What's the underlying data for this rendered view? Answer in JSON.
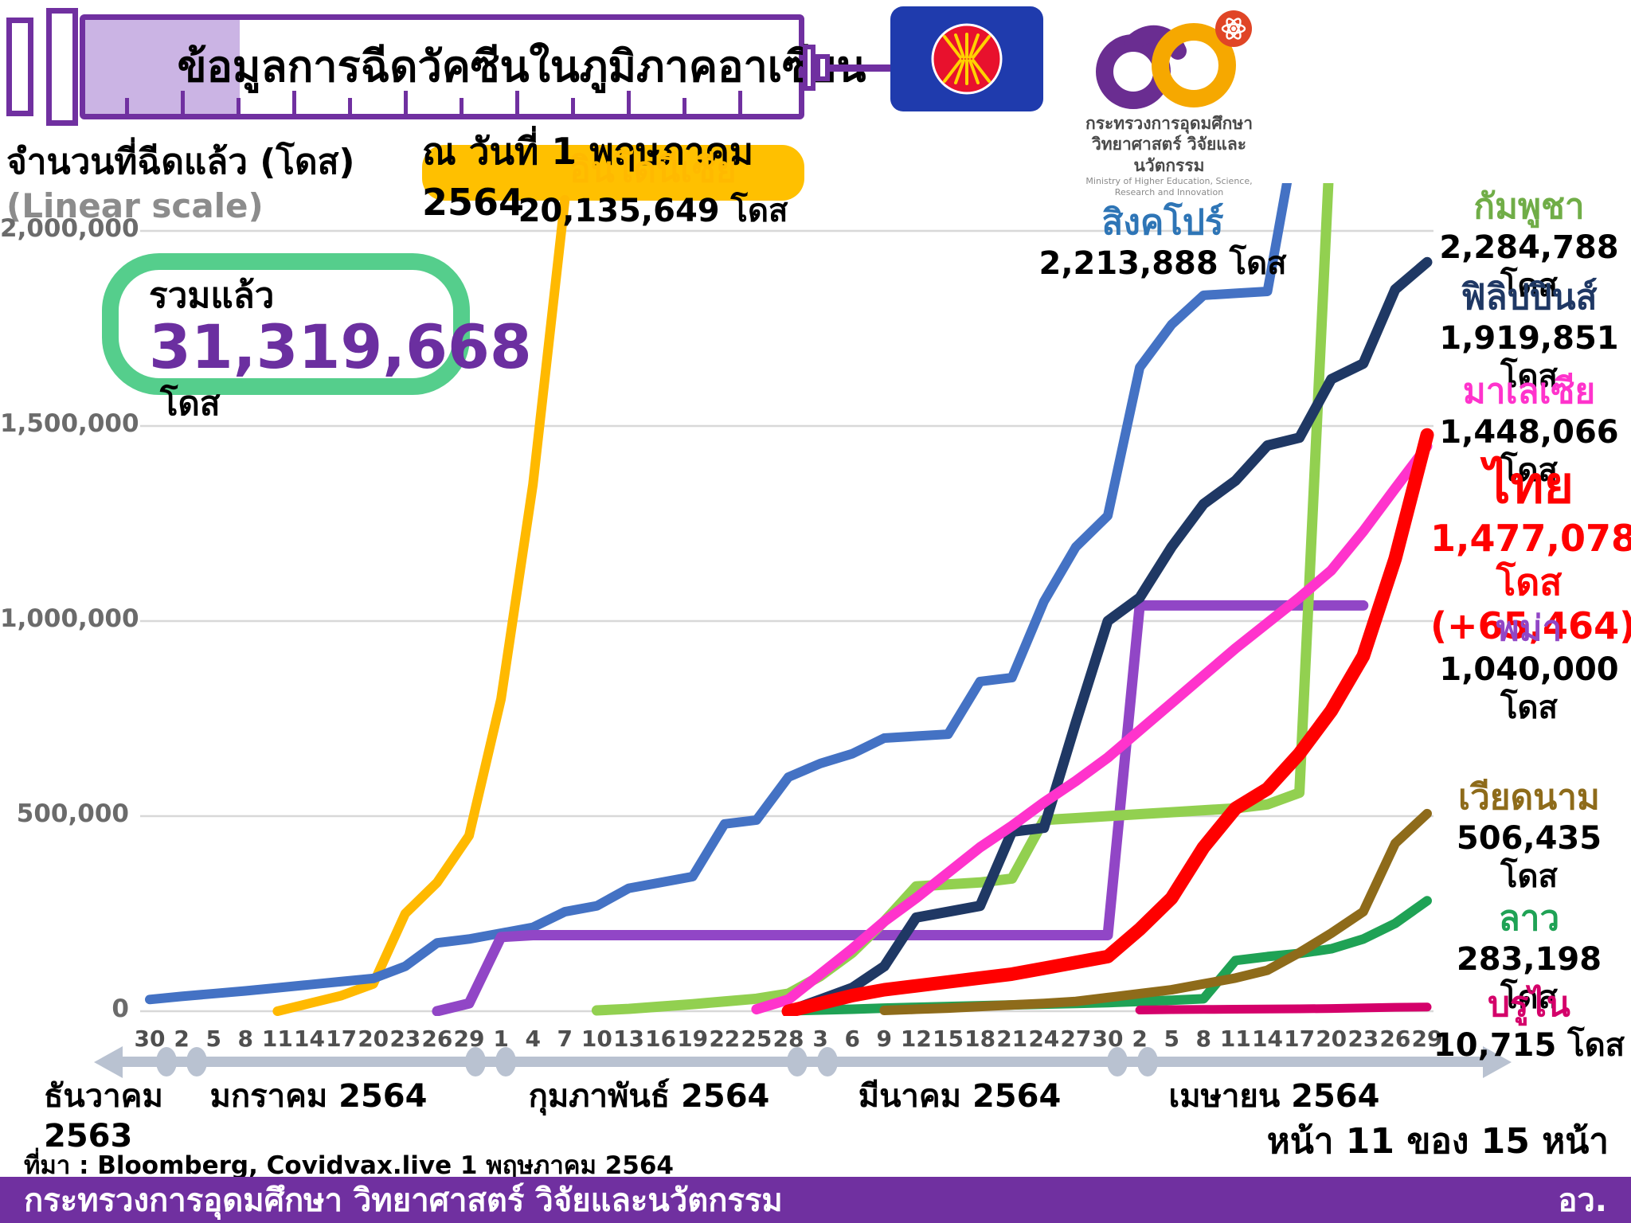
{
  "header": {
    "title": "ข้อมูลการฉีดวัคซีนในภูมิภาคอาเซียน",
    "date_badge": "ณ วันที่ 1 พฤษภาคม 2564",
    "asean_flag": "asean-emblem",
    "ministry_logo": "mhesi-60-logo",
    "ministry_name_line1": "กระทรวงการอุดมศึกษา",
    "ministry_name_line2": "วิทยาศาสตร์ วิจัยและนวัตกรรม",
    "ministry_name_en": "Ministry of Higher Education, Science, Research and Innovation"
  },
  "axis_title": "จำนวนที่ฉีดแล้ว (โดส)",
  "axis_subtitle": "(Linear scale)",
  "total_box": {
    "label": "รวมแล้ว",
    "value": "31,319,668",
    "unit": "โดส"
  },
  "chart_data": {
    "type": "line",
    "title": "ข้อมูลการฉีดวัคซีนในภูมิภาคอาเซียน ณ วันที่ 1 พฤษภาคม 2564",
    "xlabel": "",
    "ylabel": "จำนวนที่ฉีดแล้ว (โดส)",
    "scale_note": "(Linear scale)",
    "ylim": [
      0,
      2000000
    ],
    "grid": true,
    "legend_position": "right-annotations",
    "ytick_values": [
      0,
      500000,
      1000000,
      1500000,
      2000000
    ],
    "ytick_labels": [
      "0",
      "500,000",
      "1,000,000",
      "1,500,000",
      "2,000,000"
    ],
    "x_tick_labels": [
      "30",
      "2",
      "5",
      "8",
      "11",
      "14",
      "17",
      "20",
      "23",
      "26",
      "29",
      "1",
      "4",
      "7",
      "10",
      "13",
      "16",
      "19",
      "22",
      "25",
      "28",
      "3",
      "6",
      "9",
      "12",
      "15",
      "18",
      "21",
      "24",
      "27",
      "30",
      "2",
      "5",
      "8",
      "11",
      "14",
      "17",
      "20",
      "23",
      "26",
      "29"
    ],
    "months": [
      {
        "label": "ธันวาคม 2563"
      },
      {
        "label": "มกราคม 2564"
      },
      {
        "label": "กุมภาพันธ์ 2564"
      },
      {
        "label": "มีนาคม 2564"
      },
      {
        "label": "เมษายน 2564"
      }
    ],
    "series": [
      {
        "id": "indonesia",
        "label": "อินโดนีเซีย",
        "value_label": "20,135,649 โดส",
        "final_doses": 20135649,
        "color": "#FFB900",
        "width": 12,
        "values": [
          null,
          null,
          null,
          null,
          0,
          20000,
          40000,
          70000,
          250000,
          330000,
          450000,
          800000,
          1350000,
          2080000,
          null,
          null,
          null,
          null,
          null,
          null,
          null,
          null,
          null,
          null,
          null,
          null,
          null,
          null,
          null,
          null,
          null,
          null,
          null,
          null,
          null,
          null,
          null,
          null,
          null,
          null,
          null
        ]
      },
      {
        "id": "singapore",
        "label": "สิงคโปร์",
        "value_label": "2,213,888 โดส",
        "final_doses": 2213888,
        "color": "#4472C4",
        "width": 12,
        "values": [
          30000,
          38000,
          45000,
          52000,
          60000,
          68000,
          76000,
          84000,
          115000,
          175000,
          185000,
          200000,
          215000,
          255000,
          270000,
          315000,
          330000,
          345000,
          480000,
          490000,
          600000,
          635000,
          660000,
          700000,
          705000,
          710000,
          845000,
          855000,
          1050000,
          1190000,
          1270000,
          1650000,
          1760000,
          1835000,
          1840000,
          1845000,
          2300000,
          null,
          null,
          null,
          null
        ]
      },
      {
        "id": "myanmar",
        "label": "พม่า",
        "value_label": "1,040,000 โดส",
        "final_doses": 1040000,
        "color": "#9146C6",
        "width": 13,
        "values": [
          null,
          null,
          null,
          null,
          null,
          null,
          null,
          null,
          null,
          0,
          20000,
          190000,
          195000,
          195000,
          195000,
          195000,
          195000,
          195000,
          195000,
          195000,
          195000,
          195000,
          195000,
          195000,
          195000,
          195000,
          195000,
          195000,
          195000,
          195000,
          195000,
          1040000,
          1040000,
          1040000,
          1040000,
          1040000,
          1040000,
          1040000,
          1040000,
          null,
          null
        ]
      },
      {
        "id": "cambodia",
        "label": "กัมพูชา",
        "value_label": "2,284,788 โดส",
        "final_doses": 2284788,
        "color": "#92D050",
        "width": 13,
        "values": [
          null,
          null,
          null,
          null,
          null,
          null,
          null,
          null,
          null,
          null,
          null,
          null,
          null,
          null,
          2000,
          6000,
          12000,
          18000,
          25000,
          32000,
          45000,
          90000,
          150000,
          230000,
          320000,
          325000,
          330000,
          340000,
          490000,
          495000,
          500000,
          505000,
          510000,
          515000,
          520000,
          530000,
          560000,
          2285000,
          null,
          null,
          null
        ]
      },
      {
        "id": "laos",
        "label": "ลาว",
        "value_label": "283,198 โดส",
        "final_doses": 283198,
        "color": "#1FA255",
        "width": 12,
        "values": [
          null,
          null,
          null,
          null,
          null,
          null,
          null,
          null,
          null,
          null,
          null,
          null,
          null,
          null,
          null,
          null,
          null,
          null,
          null,
          null,
          1000,
          3000,
          5000,
          8000,
          10000,
          12000,
          14000,
          16000,
          18000,
          20000,
          22000,
          25000,
          28000,
          32000,
          130000,
          140000,
          148000,
          160000,
          185000,
          225000,
          283198
        ]
      },
      {
        "id": "vietnam",
        "label": "เวียดนาม",
        "value_label": "506,435 โดส",
        "final_doses": 506435,
        "color": "#8E6B1A",
        "width": 12,
        "values": [
          null,
          null,
          null,
          null,
          null,
          null,
          null,
          null,
          null,
          null,
          null,
          null,
          null,
          null,
          null,
          null,
          null,
          null,
          null,
          null,
          null,
          null,
          null,
          2000,
          5000,
          8000,
          12000,
          16000,
          20000,
          25000,
          35000,
          45000,
          55000,
          70000,
          85000,
          105000,
          150000,
          200000,
          255000,
          430000,
          506435
        ]
      },
      {
        "id": "philippines",
        "label": "ฟิลิปปินส์",
        "value_label": "1,919,851 โดส",
        "final_doses": 1919851,
        "color": "#1F3864",
        "width": 13,
        "values": [
          null,
          null,
          null,
          null,
          null,
          null,
          null,
          null,
          null,
          null,
          null,
          null,
          null,
          null,
          null,
          null,
          null,
          null,
          null,
          null,
          0,
          30000,
          60000,
          115000,
          240000,
          255000,
          270000,
          460000,
          470000,
          740000,
          1000000,
          1060000,
          1190000,
          1300000,
          1360000,
          1450000,
          1470000,
          1620000,
          1660000,
          1850000,
          1919851
        ]
      },
      {
        "id": "malaysia",
        "label": "มาเลเซีย",
        "value_label": "1,448,066 โดส",
        "final_doses": 1448066,
        "color": "#FF33CC",
        "width": 13,
        "values": [
          null,
          null,
          null,
          null,
          null,
          null,
          null,
          null,
          null,
          null,
          null,
          null,
          null,
          null,
          null,
          null,
          null,
          null,
          null,
          5000,
          30000,
          95000,
          160000,
          230000,
          290000,
          355000,
          420000,
          475000,
          535000,
          590000,
          650000,
          720000,
          790000,
          860000,
          930000,
          995000,
          1060000,
          1130000,
          1230000,
          1340000,
          1448066
        ]
      },
      {
        "id": "brunei",
        "label": "บรูไน",
        "value_label": "10,715 โดส",
        "final_doses": 10715,
        "color": "#D4006A",
        "width": 11,
        "values": [
          null,
          null,
          null,
          null,
          null,
          null,
          null,
          null,
          null,
          null,
          null,
          null,
          null,
          null,
          null,
          null,
          null,
          null,
          null,
          null,
          null,
          null,
          null,
          null,
          null,
          null,
          null,
          null,
          null,
          null,
          null,
          3000,
          4000,
          4500,
          5000,
          5500,
          6000,
          7000,
          8500,
          10000,
          10715
        ]
      },
      {
        "id": "thailand",
        "label": "ไทย",
        "value_label": "1,477,078 โดส",
        "delta_label": "(+65,464)",
        "final_doses": 1477078,
        "color": "#FF0000",
        "width": 17,
        "values": [
          null,
          null,
          null,
          null,
          null,
          null,
          null,
          null,
          null,
          null,
          null,
          null,
          null,
          null,
          null,
          null,
          null,
          null,
          null,
          null,
          0,
          20000,
          40000,
          55000,
          65000,
          75000,
          85000,
          95000,
          110000,
          125000,
          140000,
          210000,
          290000,
          420000,
          520000,
          570000,
          660000,
          770000,
          910000,
          1160000,
          1477078
        ]
      }
    ]
  },
  "source": "ที่มา : Bloomberg, Covidvax.live 1 พฤษภาคม 2564",
  "page_label": "หน้า 11 ของ 15 หน้า",
  "footer": {
    "text": "กระทรวงการอุดมศึกษา วิทยาศาสตร์ วิจัยและนวัตกรรม",
    "abbr": "อว."
  }
}
